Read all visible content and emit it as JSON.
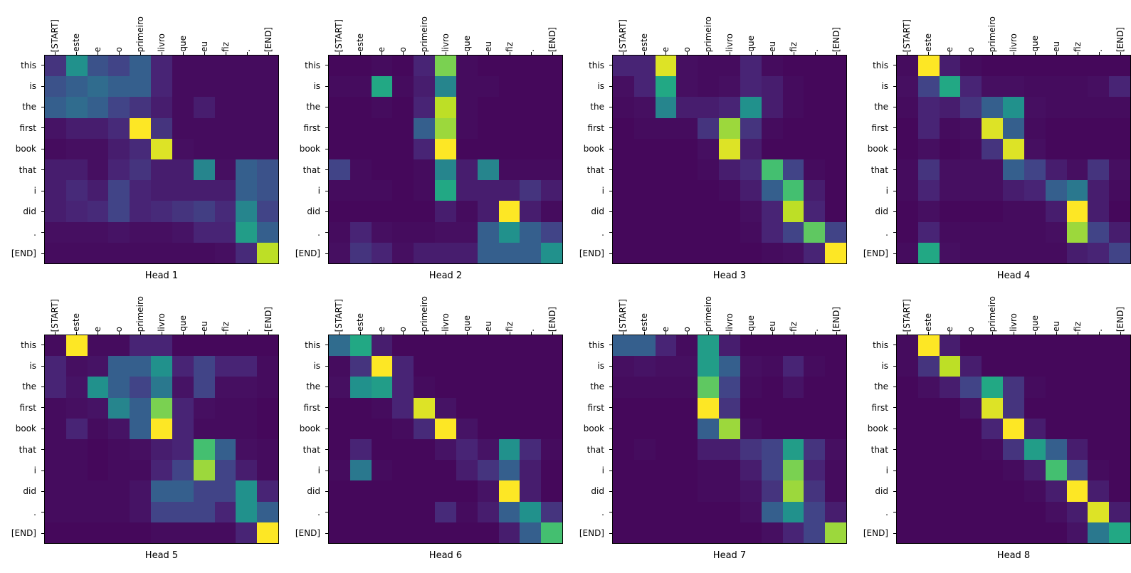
{
  "figure": {
    "background": "#ffffff",
    "text_color": "#000000",
    "colormap": "viridis",
    "colormap_stops": [
      "#440154",
      "#482475",
      "#414487",
      "#355f8d",
      "#2a788e",
      "#21918c",
      "#22a884",
      "#44bf70",
      "#7ad151",
      "#bddf26",
      "#fde725"
    ]
  },
  "chart_data": {
    "type": "heatmap",
    "description": "Transformer attention weights per head; rows are output (English) tokens, columns are input (Portuguese) tokens",
    "x_labels": [
      "[START]",
      "este",
      "e",
      "o",
      "primeiro",
      "livro",
      "que",
      "eu",
      "fiz",
      ".",
      "[END]"
    ],
    "y_labels": [
      "this",
      "is",
      "the",
      "first",
      "book",
      "that",
      "i",
      "did",
      ".",
      "[END]"
    ],
    "vmin": 0,
    "vmax": 1,
    "legend": "none",
    "grid": false,
    "heads": [
      {
        "title": "Head 1",
        "values": [
          [
            0.15,
            0.5,
            0.25,
            0.2,
            0.3,
            0.1,
            0.03,
            0.03,
            0.03,
            0.03,
            0.03
          ],
          [
            0.25,
            0.3,
            0.35,
            0.3,
            0.3,
            0.1,
            0.03,
            0.03,
            0.03,
            0.03,
            0.03
          ],
          [
            0.3,
            0.35,
            0.3,
            0.2,
            0.15,
            0.08,
            0.03,
            0.08,
            0.03,
            0.03,
            0.03
          ],
          [
            0.05,
            0.08,
            0.08,
            0.12,
            1.0,
            0.15,
            0.03,
            0.03,
            0.03,
            0.03,
            0.03
          ],
          [
            0.03,
            0.04,
            0.04,
            0.08,
            0.12,
            0.95,
            0.04,
            0.03,
            0.03,
            0.03,
            0.03
          ],
          [
            0.08,
            0.08,
            0.04,
            0.1,
            0.15,
            0.08,
            0.08,
            0.45,
            0.04,
            0.3,
            0.25
          ],
          [
            0.08,
            0.12,
            0.08,
            0.2,
            0.1,
            0.08,
            0.08,
            0.08,
            0.08,
            0.3,
            0.25
          ],
          [
            0.08,
            0.1,
            0.12,
            0.2,
            0.1,
            0.12,
            0.15,
            0.18,
            0.12,
            0.45,
            0.2
          ],
          [
            0.04,
            0.04,
            0.04,
            0.05,
            0.04,
            0.04,
            0.05,
            0.1,
            0.1,
            0.55,
            0.3
          ],
          [
            0.03,
            0.03,
            0.03,
            0.03,
            0.03,
            0.03,
            0.03,
            0.03,
            0.04,
            0.12,
            0.9
          ]
        ]
      },
      {
        "title": "Head 2",
        "values": [
          [
            0.02,
            0.02,
            0.03,
            0.02,
            0.1,
            0.8,
            0.03,
            0.02,
            0.02,
            0.02,
            0.02
          ],
          [
            0.03,
            0.03,
            0.6,
            0.03,
            0.08,
            0.45,
            0.03,
            0.03,
            0.02,
            0.02,
            0.02
          ],
          [
            0.02,
            0.02,
            0.03,
            0.02,
            0.1,
            0.9,
            0.03,
            0.02,
            0.02,
            0.02,
            0.02
          ],
          [
            0.02,
            0.02,
            0.02,
            0.02,
            0.3,
            0.85,
            0.03,
            0.02,
            0.02,
            0.02,
            0.02
          ],
          [
            0.02,
            0.02,
            0.02,
            0.02,
            0.1,
            1.0,
            0.02,
            0.02,
            0.02,
            0.02,
            0.02
          ],
          [
            0.2,
            0.03,
            0.02,
            0.02,
            0.03,
            0.45,
            0.08,
            0.45,
            0.03,
            0.03,
            0.03
          ],
          [
            0.03,
            0.03,
            0.03,
            0.02,
            0.03,
            0.6,
            0.08,
            0.08,
            0.08,
            0.15,
            0.08
          ],
          [
            0.02,
            0.02,
            0.02,
            0.02,
            0.02,
            0.08,
            0.03,
            0.08,
            1.0,
            0.08,
            0.03
          ],
          [
            0.03,
            0.1,
            0.04,
            0.03,
            0.03,
            0.04,
            0.04,
            0.3,
            0.5,
            0.3,
            0.2
          ],
          [
            0.04,
            0.15,
            0.1,
            0.04,
            0.08,
            0.08,
            0.08,
            0.3,
            0.3,
            0.3,
            0.5
          ]
        ]
      },
      {
        "title": "Head 3",
        "values": [
          [
            0.1,
            0.1,
            0.95,
            0.04,
            0.03,
            0.03,
            0.1,
            0.03,
            0.02,
            0.02,
            0.02
          ],
          [
            0.04,
            0.1,
            0.6,
            0.04,
            0.03,
            0.04,
            0.1,
            0.08,
            0.03,
            0.02,
            0.02
          ],
          [
            0.03,
            0.04,
            0.45,
            0.08,
            0.08,
            0.1,
            0.5,
            0.08,
            0.03,
            0.02,
            0.02
          ],
          [
            0.02,
            0.03,
            0.03,
            0.03,
            0.15,
            0.85,
            0.15,
            0.03,
            0.02,
            0.02,
            0.02
          ],
          [
            0.02,
            0.02,
            0.02,
            0.02,
            0.04,
            0.95,
            0.08,
            0.02,
            0.02,
            0.02,
            0.02
          ],
          [
            0.02,
            0.02,
            0.02,
            0.02,
            0.03,
            0.08,
            0.12,
            0.7,
            0.2,
            0.03,
            0.02
          ],
          [
            0.02,
            0.02,
            0.02,
            0.02,
            0.02,
            0.03,
            0.08,
            0.3,
            0.7,
            0.08,
            0.02
          ],
          [
            0.02,
            0.02,
            0.02,
            0.02,
            0.02,
            0.02,
            0.04,
            0.1,
            0.9,
            0.1,
            0.02
          ],
          [
            0.02,
            0.02,
            0.02,
            0.02,
            0.02,
            0.02,
            0.03,
            0.1,
            0.2,
            0.75,
            0.2
          ],
          [
            0.02,
            0.02,
            0.02,
            0.02,
            0.02,
            0.02,
            0.02,
            0.03,
            0.04,
            0.1,
            1.0
          ]
        ]
      },
      {
        "title": "Head 4",
        "values": [
          [
            0.03,
            1.0,
            0.08,
            0.03,
            0.02,
            0.02,
            0.02,
            0.02,
            0.02,
            0.02,
            0.02
          ],
          [
            0.04,
            0.2,
            0.6,
            0.1,
            0.04,
            0.04,
            0.03,
            0.03,
            0.03,
            0.04,
            0.1
          ],
          [
            0.03,
            0.1,
            0.08,
            0.15,
            0.3,
            0.5,
            0.04,
            0.03,
            0.03,
            0.03,
            0.03
          ],
          [
            0.02,
            0.1,
            0.03,
            0.04,
            0.95,
            0.3,
            0.03,
            0.02,
            0.02,
            0.02,
            0.02
          ],
          [
            0.02,
            0.04,
            0.02,
            0.03,
            0.15,
            0.95,
            0.04,
            0.02,
            0.02,
            0.02,
            0.02
          ],
          [
            0.03,
            0.15,
            0.04,
            0.04,
            0.04,
            0.3,
            0.2,
            0.08,
            0.04,
            0.15,
            0.04
          ],
          [
            0.03,
            0.1,
            0.04,
            0.04,
            0.04,
            0.08,
            0.1,
            0.3,
            0.4,
            0.08,
            0.03
          ],
          [
            0.02,
            0.04,
            0.02,
            0.02,
            0.02,
            0.03,
            0.03,
            0.08,
            1.0,
            0.08,
            0.02
          ],
          [
            0.02,
            0.1,
            0.03,
            0.03,
            0.03,
            0.03,
            0.03,
            0.04,
            0.85,
            0.2,
            0.08
          ],
          [
            0.03,
            0.6,
            0.04,
            0.03,
            0.03,
            0.03,
            0.03,
            0.03,
            0.08,
            0.1,
            0.2
          ]
        ]
      },
      {
        "title": "Head 5",
        "values": [
          [
            0.03,
            1.0,
            0.03,
            0.03,
            0.1,
            0.1,
            0.02,
            0.02,
            0.02,
            0.02,
            0.02
          ],
          [
            0.1,
            0.04,
            0.05,
            0.3,
            0.3,
            0.5,
            0.1,
            0.2,
            0.1,
            0.1,
            0.03
          ],
          [
            0.1,
            0.05,
            0.5,
            0.3,
            0.2,
            0.4,
            0.05,
            0.2,
            0.04,
            0.04,
            0.03
          ],
          [
            0.03,
            0.04,
            0.05,
            0.45,
            0.3,
            0.8,
            0.1,
            0.04,
            0.03,
            0.03,
            0.02
          ],
          [
            0.03,
            0.1,
            0.03,
            0.05,
            0.3,
            1.0,
            0.1,
            0.03,
            0.03,
            0.03,
            0.02
          ],
          [
            0.03,
            0.03,
            0.02,
            0.03,
            0.04,
            0.08,
            0.1,
            0.7,
            0.3,
            0.04,
            0.03
          ],
          [
            0.03,
            0.03,
            0.02,
            0.03,
            0.03,
            0.1,
            0.2,
            0.85,
            0.2,
            0.08,
            0.03
          ],
          [
            0.03,
            0.03,
            0.03,
            0.03,
            0.05,
            0.3,
            0.3,
            0.2,
            0.2,
            0.5,
            0.1
          ],
          [
            0.03,
            0.03,
            0.03,
            0.03,
            0.05,
            0.2,
            0.2,
            0.2,
            0.1,
            0.5,
            0.3
          ],
          [
            0.02,
            0.02,
            0.02,
            0.02,
            0.02,
            0.03,
            0.03,
            0.03,
            0.03,
            0.1,
            1.0
          ]
        ]
      },
      {
        "title": "Head 6",
        "values": [
          [
            0.35,
            0.6,
            0.08,
            0.02,
            0.02,
            0.02,
            0.02,
            0.02,
            0.02,
            0.02,
            0.02
          ],
          [
            0.03,
            0.15,
            1.0,
            0.1,
            0.02,
            0.02,
            0.02,
            0.02,
            0.02,
            0.02,
            0.02
          ],
          [
            0.04,
            0.5,
            0.55,
            0.1,
            0.03,
            0.02,
            0.02,
            0.02,
            0.02,
            0.02,
            0.02
          ],
          [
            0.02,
            0.02,
            0.03,
            0.1,
            0.95,
            0.05,
            0.02,
            0.02,
            0.02,
            0.02,
            0.02
          ],
          [
            0.02,
            0.02,
            0.02,
            0.03,
            0.12,
            1.0,
            0.05,
            0.02,
            0.02,
            0.02,
            0.02
          ],
          [
            0.02,
            0.1,
            0.02,
            0.02,
            0.02,
            0.05,
            0.1,
            0.05,
            0.5,
            0.12,
            0.03
          ],
          [
            0.03,
            0.4,
            0.03,
            0.02,
            0.02,
            0.02,
            0.08,
            0.15,
            0.3,
            0.08,
            0.02
          ],
          [
            0.02,
            0.02,
            0.02,
            0.02,
            0.02,
            0.02,
            0.02,
            0.05,
            1.0,
            0.08,
            0.02
          ],
          [
            0.02,
            0.02,
            0.02,
            0.02,
            0.02,
            0.12,
            0.03,
            0.08,
            0.3,
            0.5,
            0.15
          ],
          [
            0.02,
            0.02,
            0.02,
            0.02,
            0.02,
            0.02,
            0.02,
            0.02,
            0.08,
            0.3,
            0.7
          ]
        ]
      },
      {
        "title": "Head 7",
        "values": [
          [
            0.3,
            0.3,
            0.1,
            0.03,
            0.55,
            0.08,
            0.02,
            0.02,
            0.02,
            0.02,
            0.02
          ],
          [
            0.04,
            0.05,
            0.04,
            0.04,
            0.55,
            0.3,
            0.04,
            0.03,
            0.1,
            0.03,
            0.02
          ],
          [
            0.03,
            0.03,
            0.03,
            0.03,
            0.75,
            0.2,
            0.03,
            0.02,
            0.05,
            0.02,
            0.02
          ],
          [
            0.02,
            0.02,
            0.02,
            0.02,
            1.0,
            0.15,
            0.02,
            0.02,
            0.02,
            0.02,
            0.02
          ],
          [
            0.02,
            0.02,
            0.02,
            0.02,
            0.3,
            0.85,
            0.04,
            0.02,
            0.02,
            0.02,
            0.02
          ],
          [
            0.02,
            0.03,
            0.02,
            0.02,
            0.08,
            0.08,
            0.15,
            0.2,
            0.55,
            0.15,
            0.04
          ],
          [
            0.02,
            0.02,
            0.02,
            0.02,
            0.03,
            0.03,
            0.08,
            0.2,
            0.8,
            0.1,
            0.03
          ],
          [
            0.02,
            0.02,
            0.02,
            0.02,
            0.03,
            0.03,
            0.05,
            0.15,
            0.85,
            0.15,
            0.03
          ],
          [
            0.02,
            0.02,
            0.02,
            0.02,
            0.02,
            0.02,
            0.04,
            0.3,
            0.5,
            0.2,
            0.08
          ],
          [
            0.02,
            0.02,
            0.02,
            0.02,
            0.02,
            0.02,
            0.02,
            0.04,
            0.1,
            0.2,
            0.85
          ]
        ]
      },
      {
        "title": "Head 8",
        "values": [
          [
            0.03,
            1.0,
            0.08,
            0.02,
            0.02,
            0.02,
            0.02,
            0.02,
            0.02,
            0.02,
            0.02
          ],
          [
            0.03,
            0.15,
            0.9,
            0.08,
            0.02,
            0.02,
            0.02,
            0.02,
            0.02,
            0.02,
            0.02
          ],
          [
            0.02,
            0.04,
            0.08,
            0.2,
            0.6,
            0.15,
            0.03,
            0.02,
            0.02,
            0.02,
            0.02
          ],
          [
            0.02,
            0.02,
            0.02,
            0.05,
            0.95,
            0.15,
            0.02,
            0.02,
            0.02,
            0.02,
            0.02
          ],
          [
            0.02,
            0.02,
            0.02,
            0.02,
            0.1,
            1.0,
            0.08,
            0.02,
            0.02,
            0.02,
            0.02
          ],
          [
            0.02,
            0.02,
            0.02,
            0.02,
            0.03,
            0.15,
            0.55,
            0.3,
            0.08,
            0.02,
            0.02
          ],
          [
            0.02,
            0.02,
            0.02,
            0.02,
            0.02,
            0.03,
            0.08,
            0.7,
            0.2,
            0.03,
            0.02
          ],
          [
            0.02,
            0.02,
            0.02,
            0.02,
            0.02,
            0.02,
            0.03,
            0.08,
            1.0,
            0.08,
            0.02
          ],
          [
            0.02,
            0.02,
            0.02,
            0.02,
            0.02,
            0.02,
            0.02,
            0.04,
            0.08,
            0.95,
            0.08
          ],
          [
            0.02,
            0.02,
            0.02,
            0.02,
            0.02,
            0.02,
            0.02,
            0.02,
            0.05,
            0.4,
            0.6
          ]
        ]
      }
    ]
  }
}
